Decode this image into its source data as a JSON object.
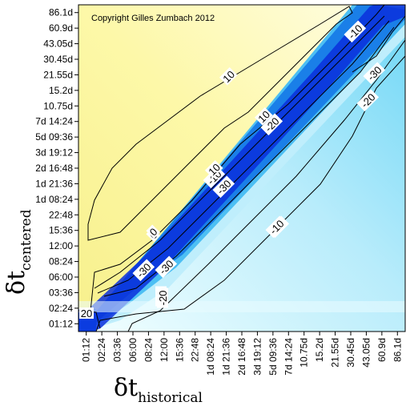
{
  "chart_data": {
    "type": "heatmap",
    "annotation": "Copyright Gilles Zumbach 2012",
    "xlabel": {
      "symbol": "δt",
      "subscript": "historical"
    },
    "ylabel": {
      "symbol": "δt",
      "subscript": "centered"
    },
    "ticks": [
      "01:12",
      "02:24",
      "03:36",
      "06:00",
      "08:24",
      "12:00",
      "15:36",
      "22:48",
      "1d 08:24",
      "1d 21:36",
      "2d 16:48",
      "3d 19:12",
      "5d 09:36",
      "7d 14:24",
      "10.75d",
      "15.2d",
      "21.55d",
      "30.45d",
      "43.05d",
      "60.9d",
      "86.1d"
    ],
    "x_ticks": [
      "01:12",
      "02:24",
      "03:36",
      "06:00",
      "08:24",
      "12:00",
      "15:36",
      "22:48",
      "1d 08:24",
      "1d 21:36",
      "2d 16:48",
      "3d 19:12",
      "5d 09:36",
      "7d 14:24",
      "10.75d",
      "15.2d",
      "21.55d",
      "30.45d",
      "43.05d",
      "60.9d",
      "86.1d"
    ],
    "contour_levels": [
      10,
      0,
      -10,
      -20,
      -30
    ],
    "contour_labels": [
      "10",
      "10",
      "0",
      "-10",
      "-20",
      "-30",
      "20",
      "10",
      "0",
      "-10",
      "-20",
      "-30",
      "-20",
      "-30",
      "-10",
      "-30",
      "-20",
      "-10"
    ],
    "colors": {
      "positive": "#fdf9a0",
      "zero": "#ffffff",
      "negative": "#0a32e6"
    },
    "grid": false
  }
}
